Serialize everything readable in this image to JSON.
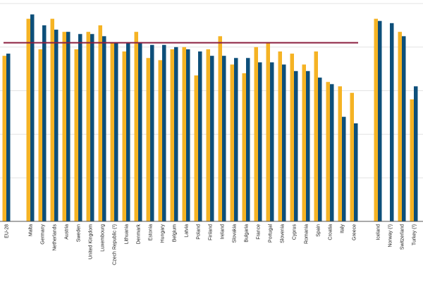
{
  "chart_data": {
    "type": "bar",
    "title": "",
    "xlabel": "",
    "ylabel": "",
    "ylim": [
      0,
      100
    ],
    "grid": true,
    "categories": [
      "EU-28",
      "Malta",
      "Germany",
      "Netherlands",
      "Austria",
      "Sweden",
      "United Kingdom",
      "Luxembourg",
      "Czech Republic (¹)",
      "Lithuania",
      "Denmark",
      "Estonia",
      "Hungary",
      "Belgium",
      "Latvia",
      "Poland",
      "Finland",
      "Ireland",
      "Slovakia",
      "Bulgaria",
      "France",
      "Portugal",
      "Slovenia",
      "Cyprus",
      "Romania",
      "Spain",
      "Croatia",
      "Italy",
      "Greece",
      "Iceland",
      "Norway (¹)",
      "Switzerland",
      "Turkey (¹)"
    ],
    "gaps_after": [
      "EU-28",
      "Greece"
    ],
    "series": [
      {
        "name": "Series 1",
        "color": "#f5b324",
        "values": [
          76,
          93,
          79,
          93,
          87,
          79,
          87,
          90,
          82,
          78,
          87,
          75,
          74,
          79,
          80,
          67,
          79,
          85,
          72,
          68,
          80,
          82,
          78,
          77,
          72,
          78,
          64,
          62,
          59,
          93,
          0,
          87,
          56
        ]
      },
      {
        "name": "Series 2",
        "color": "#0d4f7a",
        "values": [
          77,
          95,
          90,
          88,
          87,
          86,
          86,
          85,
          82,
          82,
          82,
          81,
          81,
          80,
          79,
          78,
          76,
          76,
          75,
          75,
          73,
          73,
          72,
          69,
          69,
          66,
          63,
          48,
          45,
          92,
          91,
          85,
          62
        ]
      }
    ],
    "reference_line": {
      "value": 82,
      "color": "#8b1f3f"
    }
  }
}
